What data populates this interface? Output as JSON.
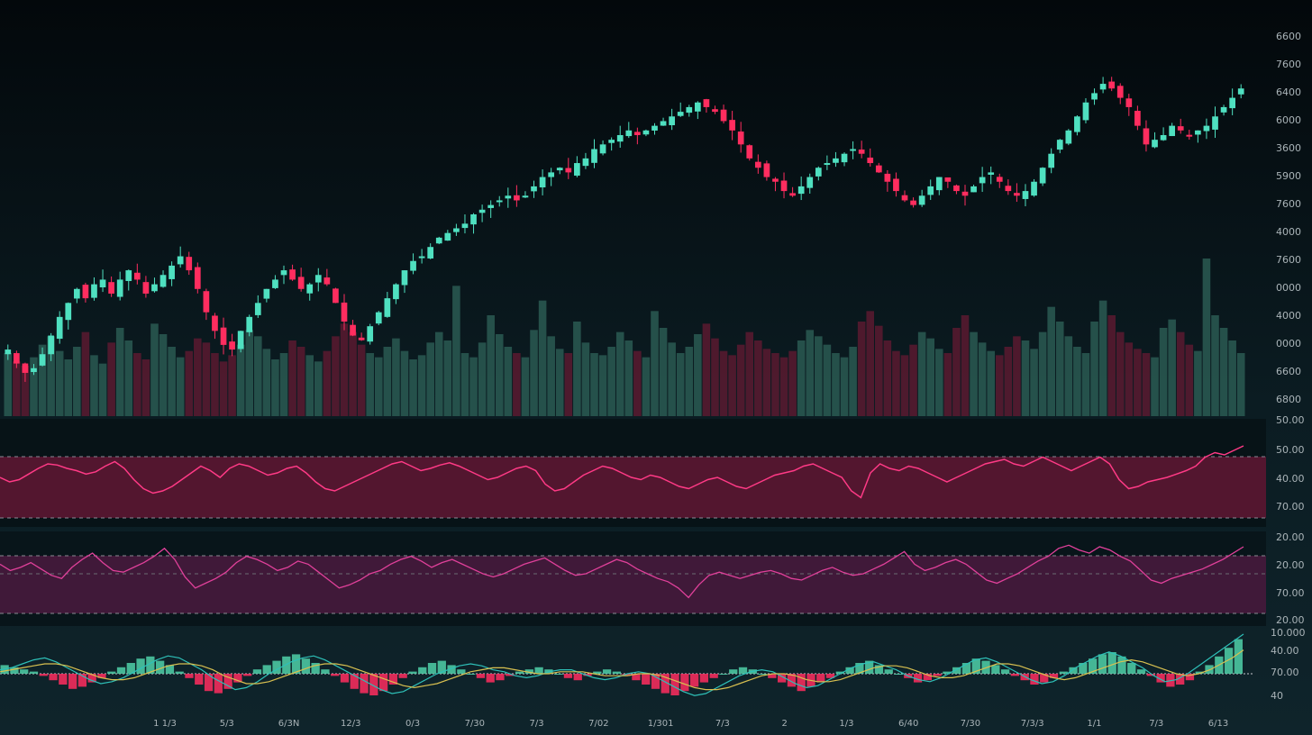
{
  "colors": {
    "background": "#050b0f",
    "panel": "#0a1a20",
    "up": "#4fe0c0",
    "down": "#ff2d5f",
    "rsi_line": "#ff3a86",
    "rsi_band": "#6e1838",
    "stoch_line": "#e0409a",
    "stoch_band": "#4a1a40",
    "macd_yellow": "#d8c050",
    "macd_teal": "#2ec0b8",
    "macd_blue": "#1e6a9a",
    "grid_dash": "#8a8a94",
    "text": "#aab4b8"
  },
  "chart_data": [
    {
      "type": "candlestick",
      "title": "",
      "xlabel": "",
      "ylabel": "",
      "price_axis_labels": [
        "6600",
        "7600",
        "6400",
        "6000",
        "3600",
        "5900",
        "7600",
        "4000",
        "7600",
        "0000",
        "4000",
        "0000",
        "6600",
        "6800"
      ],
      "time_axis_labels": [
        "1 1/3",
        "5/3",
        "6/3N",
        "12/3",
        "0/3",
        "7/30",
        "7/3",
        "7/02",
        "1/301",
        "7/3",
        "2",
        "1/3",
        "6/40",
        "7/30",
        "7/3/3",
        "1/1",
        "7/3",
        "6/13"
      ],
      "close": [
        56,
        53,
        51,
        52,
        55,
        59,
        63,
        66,
        69,
        67,
        70,
        71,
        68,
        71,
        73,
        71,
        68,
        70,
        72,
        74,
        76,
        73,
        69,
        64,
        60,
        57,
        56,
        60,
        63,
        66,
        69,
        71,
        73,
        71,
        69,
        70,
        72,
        70,
        66,
        62,
        59,
        58,
        61,
        64,
        67,
        70,
        73,
        75,
        76,
        78,
        80,
        81,
        82,
        83,
        85,
        86,
        87,
        88,
        89,
        88,
        89,
        91,
        93,
        94,
        95,
        94,
        96,
        97,
        99,
        100,
        101,
        102,
        103,
        102,
        103,
        104,
        105,
        106,
        107,
        108,
        109,
        108,
        107,
        105,
        103,
        100,
        97,
        95,
        93,
        92,
        90,
        89,
        91,
        93,
        95,
        96,
        97,
        98,
        99,
        98,
        96,
        94,
        92,
        90,
        88,
        87,
        89,
        91,
        93,
        92,
        90,
        89,
        91,
        93,
        94,
        92,
        90,
        89,
        90,
        92,
        95,
        98,
        101,
        103,
        106,
        109,
        111,
        113,
        112,
        110,
        108,
        104,
        100,
        101,
        102,
        104,
        103,
        102,
        103,
        104,
        106,
        108,
        110,
        112
      ],
      "volume": [
        30,
        26,
        24,
        28,
        34,
        38,
        31,
        27,
        33,
        40,
        29,
        25,
        35,
        42,
        36,
        30,
        27,
        44,
        39,
        33,
        28,
        31,
        37,
        35,
        30,
        26,
        29,
        34,
        41,
        38,
        32,
        27,
        30,
        36,
        33,
        29,
        26,
        31,
        38,
        44,
        40,
        34,
        30,
        28,
        33,
        37,
        31,
        27,
        29,
        35,
        40,
        36,
        62,
        30,
        28,
        35,
        48,
        39,
        33,
        30,
        28,
        41,
        55,
        38,
        32,
        30,
        45,
        35,
        30,
        29,
        33,
        40,
        36,
        31,
        28,
        50,
        42,
        35,
        30,
        33,
        39,
        44,
        37,
        31,
        29,
        34,
        40,
        36,
        32,
        30,
        28,
        31,
        36,
        41,
        38,
        34,
        30,
        28,
        33,
        45,
        50,
        43,
        36,
        31,
        29,
        34,
        40,
        37,
        32,
        30,
        42,
        48,
        40,
        35,
        31,
        29,
        33,
        38,
        36,
        32,
        40,
        52,
        45,
        38,
        33,
        30,
        45,
        55,
        48,
        40,
        35,
        32,
        30,
        28,
        42,
        46,
        40,
        34,
        31,
        75,
        48,
        42,
        36,
        30
      ]
    },
    {
      "type": "line",
      "title": "",
      "axis_labels": [
        "50.00",
        "50.00",
        "40.00",
        "70.00"
      ],
      "band": [
        30,
        70
      ],
      "range": [
        20,
        80
      ],
      "values": [
        52,
        48,
        50,
        55,
        60,
        64,
        63,
        60,
        58,
        55,
        57,
        62,
        66,
        60,
        50,
        42,
        38,
        40,
        44,
        50,
        56,
        62,
        58,
        52,
        60,
        64,
        62,
        58,
        54,
        56,
        60,
        62,
        56,
        48,
        42,
        40,
        44,
        48,
        52,
        56,
        60,
        64,
        66,
        62,
        58,
        60,
        63,
        65,
        62,
        58,
        54,
        50,
        52,
        56,
        60,
        62,
        58,
        46,
        40,
        42,
        48,
        54,
        58,
        62,
        60,
        56,
        52,
        50,
        54,
        52,
        48,
        44,
        42,
        46,
        50,
        52,
        48,
        44,
        42,
        46,
        50,
        54,
        56,
        58,
        62,
        64,
        60,
        56,
        52,
        40,
        34,
        56,
        64,
        60,
        58,
        62,
        60,
        56,
        52,
        48,
        52,
        56,
        60,
        64,
        66,
        68,
        64,
        62,
        66,
        70,
        66,
        62,
        58,
        62,
        66,
        70,
        64,
        50,
        42,
        44,
        48,
        50,
        52,
        55,
        58,
        62,
        70,
        74,
        72,
        76,
        80
      ]
    },
    {
      "type": "line",
      "title": "",
      "axis_labels": [
        "20.00",
        "20.00",
        "70.00",
        "20.00"
      ],
      "band": [
        20,
        80
      ],
      "range": [
        0,
        100
      ],
      "values": [
        70,
        62,
        66,
        72,
        64,
        56,
        52,
        66,
        76,
        84,
        72,
        62,
        60,
        66,
        72,
        80,
        90,
        76,
        54,
        40,
        46,
        52,
        60,
        72,
        80,
        76,
        70,
        62,
        66,
        74,
        70,
        60,
        50,
        40,
        44,
        50,
        58,
        62,
        70,
        76,
        80,
        74,
        66,
        72,
        76,
        70,
        64,
        58,
        54,
        58,
        64,
        70,
        74,
        78,
        70,
        62,
        56,
        58,
        64,
        70,
        76,
        72,
        64,
        58,
        52,
        48,
        40,
        28,
        44,
        56,
        60,
        56,
        52,
        56,
        60,
        62,
        58,
        52,
        50,
        56,
        62,
        66,
        60,
        56,
        58,
        64,
        70,
        78,
        86,
        70,
        62,
        66,
        72,
        76,
        70,
        60,
        50,
        46,
        52,
        58,
        66,
        74,
        80,
        90,
        94,
        88,
        84,
        92,
        88,
        80,
        74,
        62,
        50,
        46,
        52,
        56,
        60,
        64,
        70,
        76,
        84,
        92
      ]
    },
    {
      "type": "bar",
      "title": "",
      "axis_labels": [
        "10.000",
        "40.00",
        "70.00",
        "40"
      ],
      "histogram": [
        4,
        3,
        2,
        1,
        -1,
        -3,
        -5,
        -7,
        -6,
        -4,
        -2,
        1,
        3,
        5,
        7,
        8,
        6,
        4,
        1,
        -2,
        -5,
        -8,
        -9,
        -7,
        -4,
        -1,
        2,
        4,
        6,
        8,
        9,
        7,
        5,
        2,
        -1,
        -4,
        -7,
        -9,
        -10,
        -8,
        -5,
        -2,
        1,
        3,
        5,
        6,
        4,
        2,
        0,
        -2,
        -4,
        -3,
        -1,
        1,
        2,
        3,
        2,
        0,
        -2,
        -3,
        -1,
        1,
        2,
        1,
        -1,
        -3,
        -5,
        -7,
        -9,
        -10,
        -8,
        -6,
        -4,
        -2,
        0,
        2,
        3,
        2,
        0,
        -2,
        -4,
        -6,
        -8,
        -6,
        -4,
        -2,
        1,
        3,
        5,
        6,
        4,
        2,
        0,
        -2,
        -4,
        -3,
        -1,
        1,
        3,
        5,
        7,
        6,
        4,
        2,
        -1,
        -3,
        -5,
        -4,
        -2,
        1,
        3,
        5,
        7,
        9,
        10,
        8,
        5,
        2,
        -1,
        -4,
        -6,
        -5,
        -3,
        1,
        4,
        8,
        12,
        16
      ],
      "macd": [
        2,
        3,
        5,
        7,
        8,
        6,
        3,
        0,
        -3,
        -5,
        -4,
        -2,
        1,
        4,
        7,
        9,
        8,
        5,
        2,
        -2,
        -5,
        -8,
        -7,
        -4,
        0,
        3,
        6,
        8,
        9,
        7,
        4,
        1,
        -2,
        -5,
        -8,
        -10,
        -9,
        -6,
        -3,
        0,
        2,
        4,
        5,
        4,
        2,
        1,
        -1,
        -2,
        -1,
        1,
        2,
        2,
        0,
        -2,
        -3,
        -2,
        0,
        1,
        0,
        -3,
        -6,
        -9,
        -11,
        -10,
        -7,
        -4,
        -1,
        1,
        2,
        1,
        -2,
        -5,
        -7,
        -6,
        -3,
        0,
        3,
        5,
        6,
        4,
        2,
        -1,
        -3,
        -4,
        -2,
        1,
        4,
        7,
        8,
        6,
        3,
        0,
        -3,
        -5,
        -4,
        -1,
        3,
        6,
        9,
        11,
        9,
        6,
        3,
        -1,
        -4,
        -3,
        0,
        4,
        8,
        12,
        16,
        20
      ],
      "signal": [
        1,
        2,
        3,
        4,
        5,
        5,
        4,
        2,
        0,
        -2,
        -3,
        -3,
        -2,
        0,
        2,
        4,
        5,
        5,
        4,
        2,
        -1,
        -3,
        -5,
        -5,
        -4,
        -2,
        0,
        2,
        4,
        5,
        5,
        4,
        2,
        0,
        -2,
        -4,
        -6,
        -7,
        -6,
        -5,
        -3,
        -1,
        1,
        2,
        3,
        3,
        2,
        1,
        0,
        0,
        1,
        1,
        1,
        0,
        -1,
        -1,
        -1,
        0,
        0,
        -1,
        -3,
        -5,
        -7,
        -8,
        -8,
        -7,
        -5,
        -3,
        -1,
        0,
        0,
        -1,
        -3,
        -4,
        -4,
        -3,
        -1,
        1,
        3,
        4,
        4,
        3,
        1,
        -1,
        -2,
        -2,
        -1,
        1,
        3,
        5,
        5,
        4,
        2,
        0,
        -2,
        -3,
        -2,
        0,
        2,
        4,
        6,
        7,
        6,
        4,
        2,
        0,
        -1,
        0,
        2,
        5,
        8,
        12
      ]
    }
  ]
}
